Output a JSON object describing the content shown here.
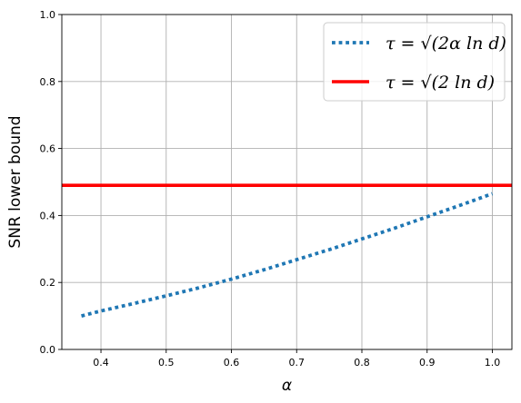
{
  "chart_data": {
    "type": "line",
    "xlabel": "α",
    "ylabel": "SNR lower bound",
    "xlim": [
      0.34,
      1.03
    ],
    "ylim": [
      0.0,
      1.0
    ],
    "xticks": [
      "0.4",
      "0.5",
      "0.6",
      "0.7",
      "0.8",
      "0.9",
      "1.0"
    ],
    "yticks": [
      "0.0",
      "0.2",
      "0.4",
      "0.6",
      "0.8",
      "1.0"
    ],
    "grid": true,
    "legend_position": "top-right",
    "series": [
      {
        "name": "τ = √(2α ln d)",
        "style": "dotted",
        "color": "#1f77b4",
        "x": [
          0.37,
          0.4,
          0.45,
          0.5,
          0.55,
          0.6,
          0.65,
          0.7,
          0.75,
          0.8,
          0.85,
          0.9,
          0.95,
          1.0
        ],
        "y": [
          0.1,
          0.115,
          0.137,
          0.16,
          0.184,
          0.21,
          0.238,
          0.268,
          0.298,
          0.33,
          0.362,
          0.396,
          0.43,
          0.465
        ]
      },
      {
        "name": "τ = √(2 ln d)",
        "style": "solid",
        "color": "#ff0000",
        "x": [
          0.34,
          1.03
        ],
        "y": [
          0.49,
          0.49
        ]
      }
    ]
  }
}
